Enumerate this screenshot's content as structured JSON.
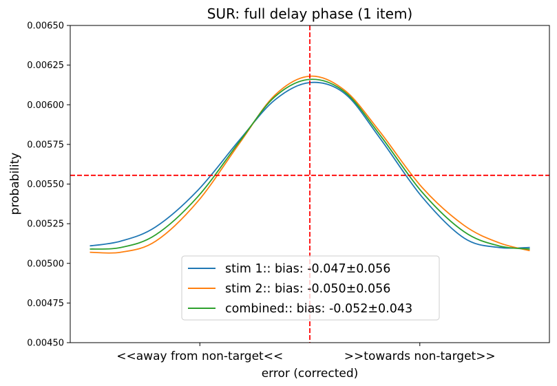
{
  "chart_data": {
    "type": "line",
    "title": "SUR: full delay phase (1 item)",
    "xlabel": "error (corrected)",
    "ylabel": "probability",
    "x_tick_labels": [
      "<<away from non-target<<",
      ">>towards non-target>>"
    ],
    "x_tick_positions": [
      -1.57,
      1.57
    ],
    "xlim": [
      -3.42,
      3.42
    ],
    "ylim": [
      0.0045,
      0.0065
    ],
    "y_ticks": [
      0.0045,
      0.00475,
      0.005,
      0.00525,
      0.0055,
      0.00575,
      0.006,
      0.00625,
      0.0065
    ],
    "y_tick_labels": [
      "0.00450",
      "0.00475",
      "0.00500",
      "0.00525",
      "0.00550",
      "0.00575",
      "0.00600",
      "0.00625",
      "0.00650"
    ],
    "x": [
      -3.14,
      -2.7,
      -2.2,
      -1.6,
      -1.0,
      -0.5,
      0.0,
      0.5,
      1.0,
      1.6,
      2.2,
      2.7,
      3.14
    ],
    "series": [
      {
        "name": "stim 1:: bias: -0.047±0.056",
        "color": "#1f77b4",
        "values": [
          0.00511,
          0.00514,
          0.00523,
          0.00546,
          0.00578,
          0.00603,
          0.00614,
          0.00607,
          0.00579,
          0.00542,
          0.00516,
          0.0051,
          0.0051
        ]
      },
      {
        "name": "stim 2:: bias: -0.050±0.056",
        "color": "#ff7f0e",
        "values": [
          0.00507,
          0.00507,
          0.00514,
          0.00539,
          0.00576,
          0.00606,
          0.00618,
          0.00609,
          0.00583,
          0.00548,
          0.00524,
          0.00513,
          0.00508
        ]
      },
      {
        "name": "combined:: bias: -0.052±0.043",
        "color": "#2ca02c",
        "values": [
          0.00509,
          0.0051,
          0.00518,
          0.00542,
          0.00577,
          0.00605,
          0.00616,
          0.00608,
          0.00581,
          0.00545,
          0.0052,
          0.00511,
          0.00509
        ]
      }
    ],
    "reference_lines": {
      "vertical_x": 0.0,
      "horizontal_y": 0.005555,
      "color": "#ff0000",
      "style": "dashed"
    },
    "legend_placement": "lower-center",
    "grid": false
  }
}
